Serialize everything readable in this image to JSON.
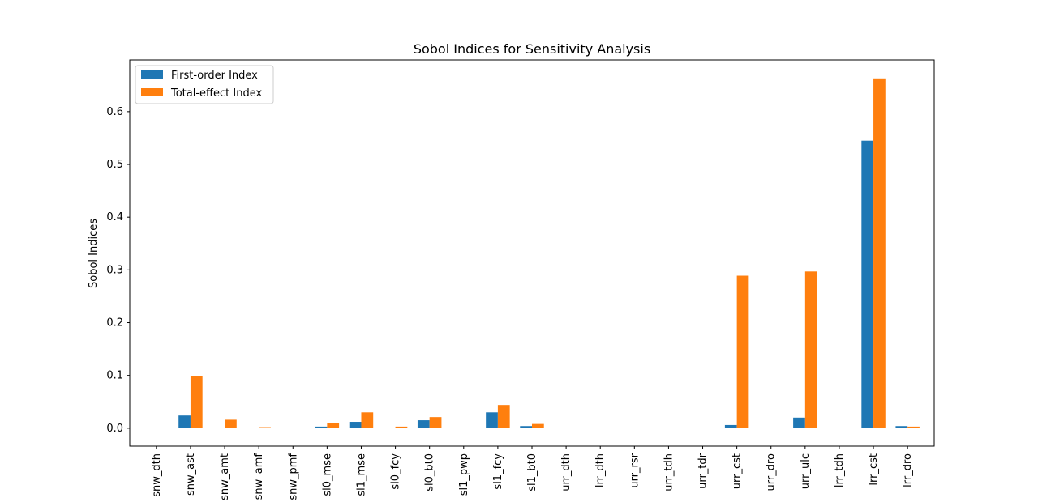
{
  "chart_data": {
    "type": "bar",
    "title": "Sobol Indices for Sensitivity Analysis",
    "xlabel": "",
    "ylabel": "Sobol Indices",
    "ylim": [
      -0.034,
      0.698
    ],
    "yticks": [
      0.0,
      0.1,
      0.2,
      0.3,
      0.4,
      0.5,
      0.6
    ],
    "ytick_labels": [
      "0.0",
      "0.1",
      "0.2",
      "0.3",
      "0.4",
      "0.5",
      "0.6"
    ],
    "grid": false,
    "legend_position": "top-left",
    "categories": [
      "snw_dth",
      "snw_ast",
      "snw_amt",
      "snw_amf",
      "snw_pmf",
      "sl0_mse",
      "sl1_mse",
      "sl0_fcy",
      "sl0_bt0",
      "sl1_pwp",
      "sl1_fcy",
      "sl1_bt0",
      "urr_dth",
      "lrr_dth",
      "urr_rsr",
      "urr_tdh",
      "urr_tdr",
      "urr_cst",
      "urr_dro",
      "urr_ulc",
      "lrr_tdh",
      "lrr_cst",
      "lrr_dro"
    ],
    "series": [
      {
        "name": "First-order Index",
        "color": "#1f77b4",
        "values": [
          0.0,
          0.024,
          0.001,
          0.0,
          0.0,
          0.003,
          0.012,
          0.001,
          0.015,
          0.0,
          0.03,
          0.004,
          0.0,
          0.0,
          0.0,
          0.0,
          0.0,
          0.006,
          0.0,
          0.02,
          0.0,
          0.545,
          0.004
        ]
      },
      {
        "name": "Total-effect Index",
        "color": "#ff7f0e",
        "values": [
          0.0,
          0.099,
          0.016,
          0.002,
          0.0,
          0.009,
          0.03,
          0.003,
          0.021,
          0.0,
          0.044,
          0.008,
          0.0,
          0.0,
          0.0,
          0.0,
          0.0,
          0.289,
          0.0,
          0.297,
          0.0,
          0.663,
          0.003
        ]
      }
    ]
  }
}
